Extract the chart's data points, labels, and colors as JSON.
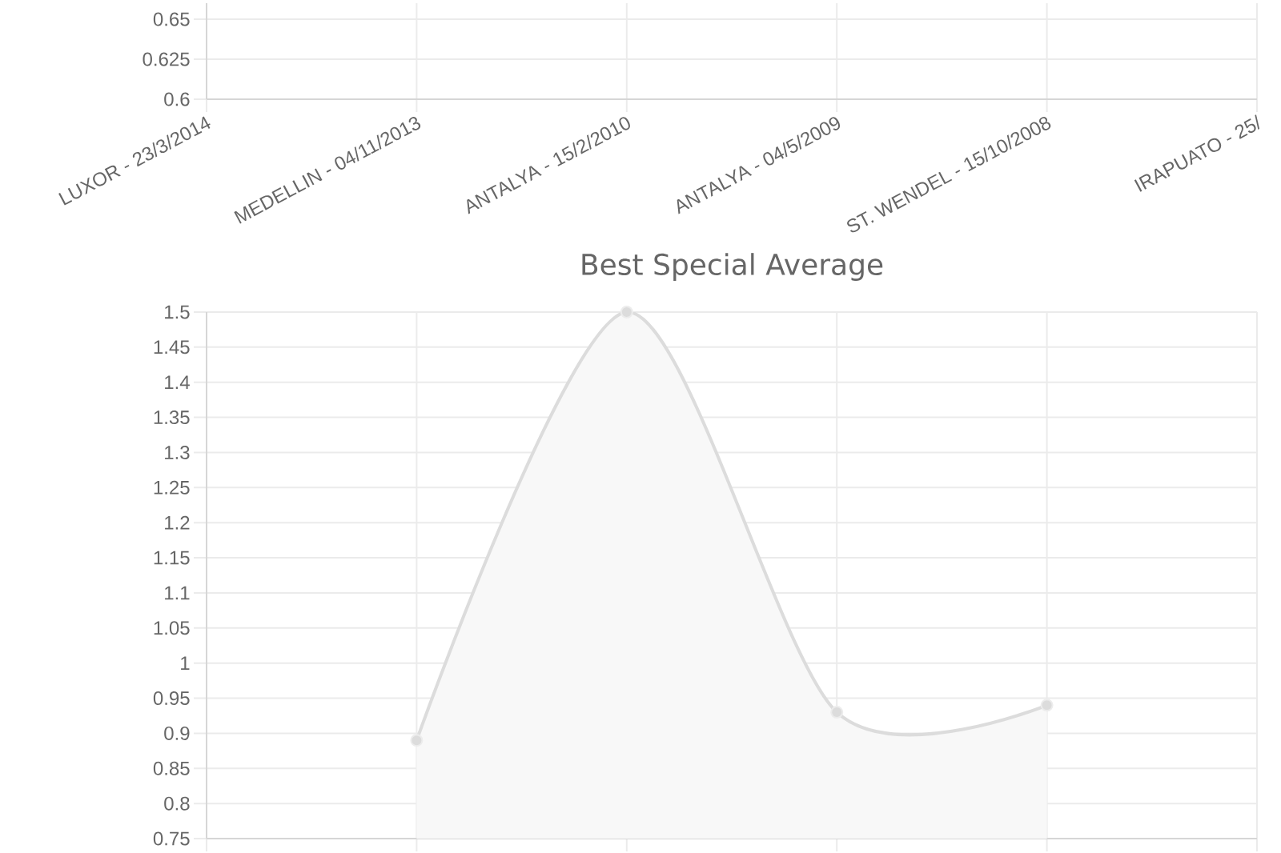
{
  "chart_data": [
    {
      "type": "area",
      "categories": [
        "LUXOR - 23/3/2014",
        "MEDELLIN - 04/11/2013",
        "ANTALYA - 15/2/2010",
        "ANTALYA - 04/5/2009",
        "ST. WENDEL - 15/10/2008",
        "IRAPUATO - 25/"
      ],
      "values": [
        null,
        null,
        null,
        null,
        null,
        null
      ],
      "ylim": [
        0.6,
        0.66
      ],
      "yticks": [
        0.6,
        0.625,
        0.65
      ],
      "grid": true
    },
    {
      "type": "area",
      "title": "Best Special Average",
      "categories": [
        null,
        null,
        null,
        null,
        null,
        null
      ],
      "values": [
        null,
        0.89,
        1.5,
        0.93,
        0.94,
        null
      ],
      "color": "#dcdcdc",
      "marker": "circle",
      "ylim": [
        0.75,
        1.5
      ],
      "yticks": [
        0.75,
        0.8,
        0.85,
        0.9,
        0.95,
        1,
        1.05,
        1.1,
        1.15,
        1.2,
        1.25,
        1.3,
        1.35,
        1.4,
        1.45,
        1.5
      ],
      "grid": true
    }
  ]
}
